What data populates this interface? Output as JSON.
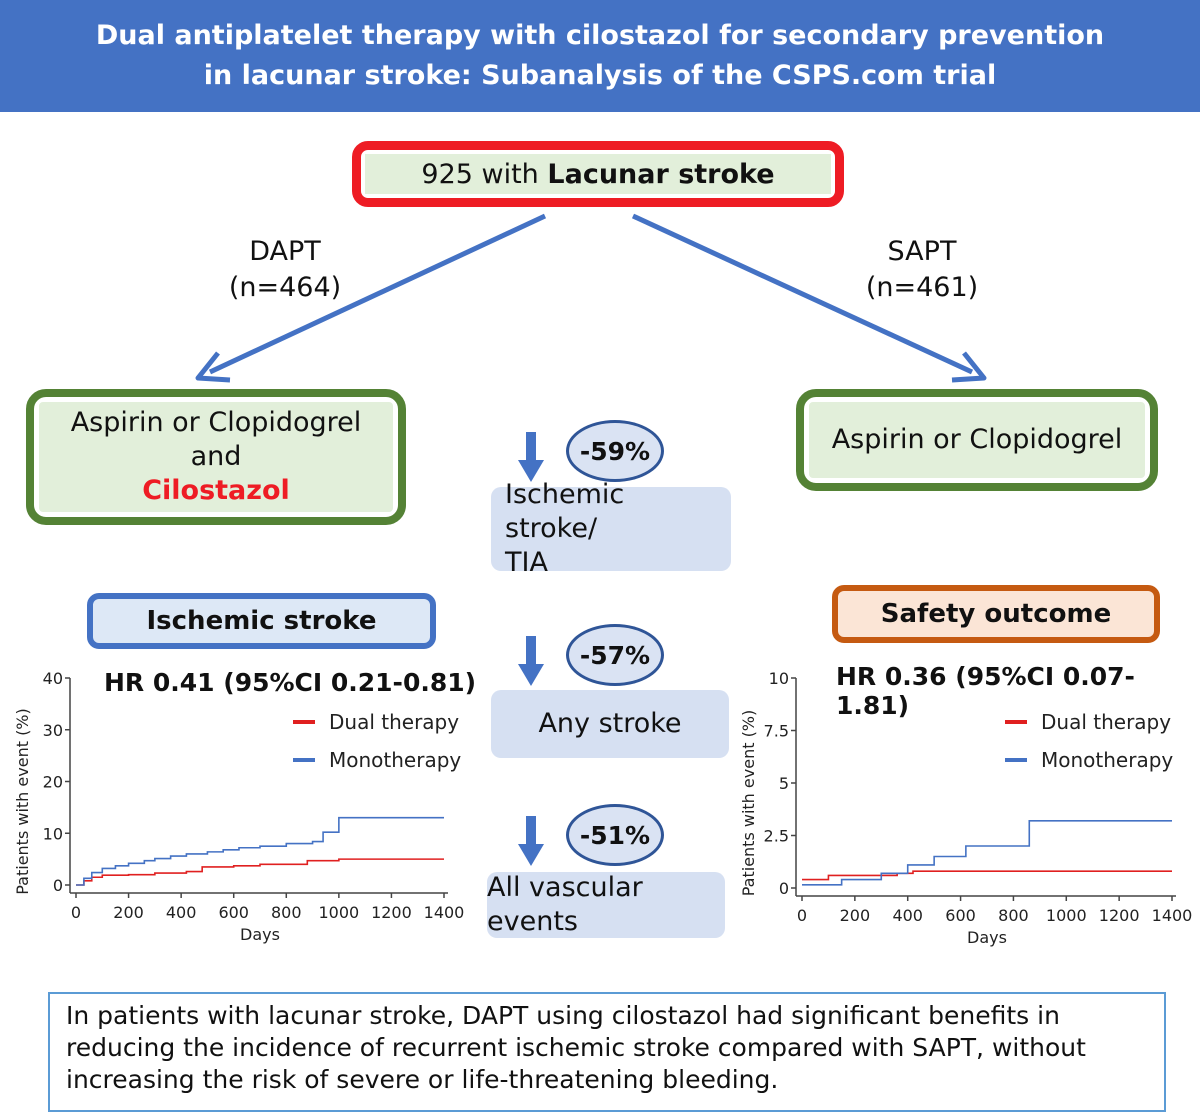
{
  "header": {
    "title_line1": "Dual antiplatelet therapy with cilostazol for secondary prevention",
    "title_line2": "in lacunar stroke: Subanalysis of the CSPS.com trial"
  },
  "population": {
    "count": "925 with",
    "label": "Lacunar stroke"
  },
  "dapt": {
    "label": "DAPT",
    "n": "(n=464)",
    "drug_line1": "Aspirin or Clopidogrel",
    "drug_line2": "and",
    "drug_line3": "Cilostazol"
  },
  "sapt": {
    "label": "SAPT",
    "n": "(n=461)",
    "drug": "Aspirin or Clopidogrel"
  },
  "outcomes": [
    {
      "reduction": "-59%",
      "label_line1": "Ischemic stroke/",
      "label_line2": "TIA"
    },
    {
      "reduction": "-57%",
      "label_line1": "Any stroke"
    },
    {
      "reduction": "-51%",
      "label_line1": "All vascular events"
    }
  ],
  "colors": {
    "banner": "#4472c4",
    "dual": "#e02020",
    "mono": "#4472c4"
  },
  "summary": {
    "text": "In patients with lacunar stroke, DAPT using cilostazol had significant benefits in reducing the incidence of recurrent ischemic stroke compared with SAPT, without increasing the risk of severe or life-threatening bleeding."
  },
  "chart_data": [
    {
      "type": "line",
      "title": "Ischemic stroke",
      "subtitle": "HR 0.41 (95%CI 0.21-0.81)",
      "xlabel": "Days",
      "ylabel": "Patients with event (%)",
      "xlim": [
        0,
        1400
      ],
      "ylim": [
        0,
        40
      ],
      "xticks": [
        0,
        200,
        400,
        600,
        800,
        1000,
        1200,
        1400
      ],
      "yticks": [
        0,
        10,
        20,
        30,
        40
      ],
      "ytick_labels": [
        "0",
        "10",
        "20",
        "30",
        "40"
      ],
      "legend": [
        "Dual therapy",
        "Monotherapy"
      ],
      "series": [
        {
          "name": "Dual therapy",
          "x": [
            0,
            30,
            60,
            100,
            200,
            300,
            420,
            480,
            600,
            700,
            880,
            1000,
            1400
          ],
          "y": [
            0,
            0.8,
            1.5,
            1.9,
            2.0,
            2.3,
            2.6,
            3.5,
            3.7,
            4.0,
            4.7,
            5.0,
            5.0
          ]
        },
        {
          "name": "Monotherapy",
          "x": [
            0,
            30,
            60,
            100,
            150,
            200,
            260,
            300,
            360,
            420,
            500,
            560,
            620,
            700,
            800,
            900,
            940,
            1000,
            1400
          ],
          "y": [
            0,
            1.3,
            2.4,
            3.2,
            3.7,
            4.2,
            4.7,
            5.1,
            5.6,
            6.0,
            6.4,
            6.8,
            7.2,
            7.5,
            8.0,
            8.4,
            10.2,
            13.0,
            13.0
          ]
        }
      ]
    },
    {
      "type": "line",
      "title": "Safety outcome",
      "subtitle": "HR 0.36 (95%CI 0.07-1.81)",
      "xlabel": "Days",
      "ylabel": "Patients with event (%)",
      "xlim": [
        0,
        1400
      ],
      "ylim": [
        0,
        10
      ],
      "xticks": [
        0,
        200,
        400,
        600,
        800,
        1000,
        1200,
        1400
      ],
      "yticks": [
        0,
        2.5,
        5,
        7.5,
        10
      ],
      "ytick_labels": [
        "0",
        "2.5",
        "5",
        "7.5",
        "10"
      ],
      "legend": [
        "Dual therapy",
        "Monotherapy"
      ],
      "series": [
        {
          "name": "Dual therapy",
          "x": [
            0,
            100,
            360,
            420,
            1400
          ],
          "y": [
            0.4,
            0.6,
            0.7,
            0.8,
            0.8
          ]
        },
        {
          "name": "Monotherapy",
          "x": [
            0,
            150,
            300,
            400,
            500,
            620,
            820,
            860,
            1400
          ],
          "y": [
            0.15,
            0.4,
            0.7,
            1.1,
            1.5,
            2.0,
            2.0,
            3.2,
            3.2
          ]
        }
      ]
    }
  ]
}
